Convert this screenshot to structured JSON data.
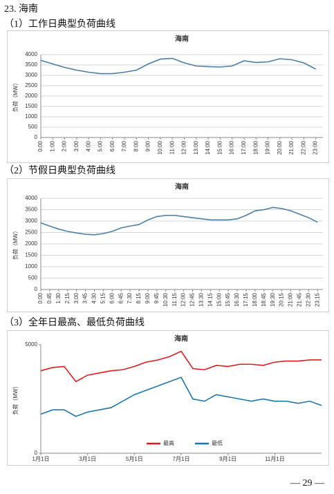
{
  "heading": "23. 海南",
  "sections": [
    "（1）工作日典型负荷曲线",
    "（2）节假日典型负荷曲线",
    "（3）全年日最高、最低负荷曲线"
  ],
  "page_number": "— 29 —",
  "chart_data": [
    {
      "type": "line",
      "title": "海南",
      "y_label": "负荷（MW）",
      "grid": true,
      "categories": [
        "0:00",
        "1:00",
        "2:00",
        "3:00",
        "4:00",
        "5:00",
        "6:00",
        "7:00",
        "8:00",
        "9:00",
        "10:00",
        "11:00",
        "12:00",
        "13:00",
        "14:00",
        "15:00",
        "16:00",
        "17:00",
        "18:00",
        "19:00",
        "20:00",
        "21:00",
        "22:00",
        "23:00"
      ],
      "series": [
        {
          "color": "#4a7ea8",
          "values": [
            3720,
            3550,
            3380,
            3250,
            3150,
            3080,
            3080,
            3150,
            3250,
            3550,
            3780,
            3820,
            3600,
            3450,
            3420,
            3400,
            3450,
            3700,
            3620,
            3650,
            3800,
            3750,
            3600,
            3300
          ]
        }
      ],
      "ylim": [
        0,
        4000
      ],
      "yticks": [
        0,
        500,
        1000,
        1500,
        2000,
        2500,
        3000,
        3500,
        4000
      ]
    },
    {
      "type": "line",
      "title": "海南",
      "y_label": "负荷（MW）",
      "grid": true,
      "categories": [
        "0:00",
        "0:45",
        "1:30",
        "2:15",
        "3:00",
        "3:45",
        "4:30",
        "5:15",
        "6:00",
        "6:45",
        "7:30",
        "8:15",
        "9:00",
        "9:45",
        "10:30",
        "11:15",
        "12:00",
        "12:45",
        "13:30",
        "14:15",
        "15:00",
        "15:45",
        "16:30",
        "17:15",
        "18:00",
        "18:45",
        "19:30",
        "20:15",
        "21:00",
        "21:45",
        "22:30",
        "23:15"
      ],
      "series": [
        {
          "color": "#4a7ea8",
          "values": [
            2920,
            2780,
            2650,
            2550,
            2480,
            2420,
            2400,
            2450,
            2550,
            2700,
            2780,
            2850,
            3050,
            3200,
            3250,
            3250,
            3200,
            3150,
            3100,
            3050,
            3050,
            3050,
            3100,
            3250,
            3450,
            3500,
            3600,
            3550,
            3450,
            3300,
            3150,
            2950
          ]
        }
      ],
      "ylim": [
        0,
        4000
      ],
      "yticks": [
        0,
        500,
        1000,
        1500,
        2000,
        2500,
        3000,
        3500,
        4000
      ]
    },
    {
      "type": "line",
      "title": "海南",
      "y_label": "负荷（MW）",
      "grid": false,
      "legend": "bottom",
      "categories": [
        "1月1日",
        null,
        null,
        null,
        "3月1日",
        null,
        null,
        null,
        "5月1日",
        null,
        null,
        null,
        "7月1日",
        null,
        null,
        null,
        "9月1日",
        null,
        null,
        null,
        "11月1日",
        null,
        null,
        null,
        null
      ],
      "series": [
        {
          "name": "最高",
          "color": "#e3191c",
          "values": [
            3800,
            3950,
            4000,
            3300,
            3600,
            3700,
            3800,
            3850,
            4000,
            4200,
            4300,
            4450,
            4700,
            3900,
            3850,
            4050,
            4000,
            4100,
            4100,
            4050,
            4200,
            4250,
            4250,
            4300,
            4300
          ]
        },
        {
          "name": "最低",
          "color": "#1b75b0",
          "values": [
            1800,
            2000,
            2000,
            1700,
            1900,
            2000,
            2100,
            2400,
            2700,
            2900,
            3100,
            3300,
            3500,
            2500,
            2400,
            2700,
            2600,
            2500,
            2400,
            2500,
            2400,
            2400,
            2300,
            2400,
            2200
          ]
        }
      ],
      "ylim": [
        0,
        5000
      ],
      "yticks": [
        0,
        5000
      ]
    }
  ]
}
